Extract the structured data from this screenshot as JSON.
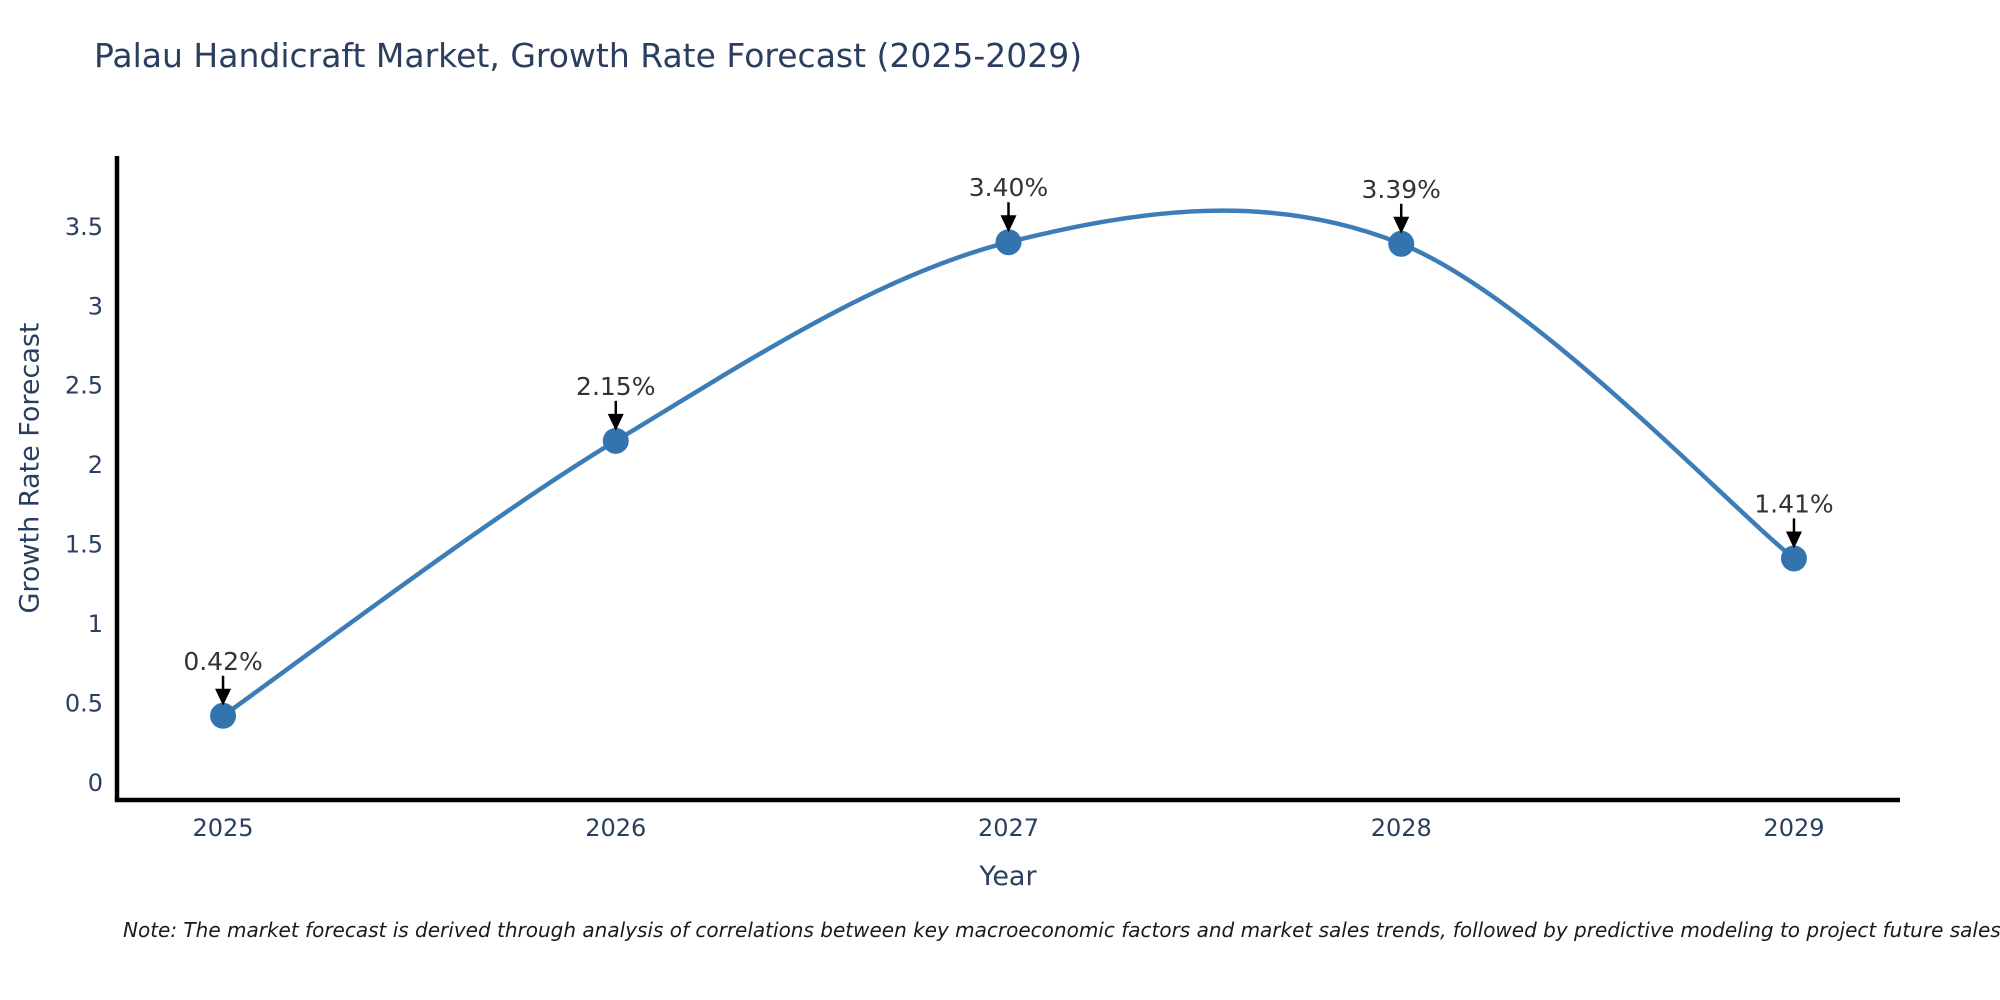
{
  "title": "Palau Handicraft Market, Growth Rate Forecast (2025-2029)",
  "note": "Note: The market forecast is derived through analysis of correlations between key macroeconomic factors and market sales trends, followed by predictive modeling to project future sales",
  "chart_data": {
    "type": "line",
    "line_shape": "spline",
    "title": "Palau Handicraft Market, Growth Rate Forecast (2025-2029)",
    "xlabel": "Year",
    "ylabel": "Growth Rate Forecast",
    "x": [
      2025,
      2026,
      2027,
      2028,
      2029
    ],
    "values": [
      0.42,
      2.15,
      3.4,
      3.39,
      1.41
    ],
    "point_labels": [
      "0.42%",
      "2.15%",
      "3.40%",
      "3.39%",
      "1.41%"
    ],
    "xticks": [
      "2025",
      "2026",
      "2027",
      "2028",
      "2029"
    ],
    "yticks": [
      0,
      0.5,
      1,
      1.5,
      2,
      2.5,
      3,
      3.5
    ],
    "xlim": [
      2024.73,
      2029.27
    ],
    "ylim": [
      -0.11,
      3.93
    ],
    "grid": false,
    "legend": false,
    "markers": true,
    "annotations_have_arrows": true,
    "colors": {
      "line": "#3c7db8",
      "marker": "#3474ae",
      "axis_line": "#000000",
      "title_text": "#2a3f5f",
      "axis_title_text": "#2a3f5f",
      "tick_text": "#2a3f5f",
      "annotation_text": "#333333",
      "arrow": "#000000",
      "note_text": "#1a1a1a",
      "background": "#ffffff"
    }
  }
}
